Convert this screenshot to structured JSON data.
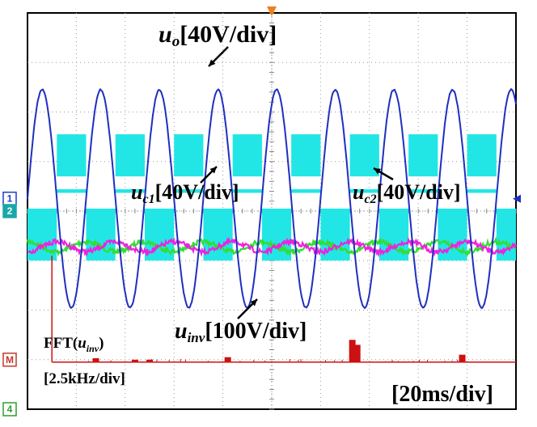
{
  "chart_data": {
    "type": "line",
    "title": "",
    "timebase": "[20ms/div]",
    "grid": true,
    "grid_divisions": {
      "x": 10,
      "y": 8
    },
    "channels": [
      {
        "marker": "1",
        "color": "#1f3fbf"
      },
      {
        "marker": "2",
        "color": "#1aa7a7"
      },
      {
        "marker": "M",
        "color": "#c0392b"
      },
      {
        "marker": "4",
        "color": "#2e9e2e"
      }
    ],
    "series": [
      {
        "name": "u_o",
        "label_main": "u",
        "label_sub": "o",
        "label_scale": "[40V/div]",
        "color": "#1f2fbf",
        "unit": "V",
        "scale_per_div": 40,
        "amplitude_div": 2.2,
        "offset_div": 0.25,
        "period_div": 1.2,
        "phase_peak_div": 1.5
      },
      {
        "name": "u_c1",
        "label_main": "u",
        "label_sub": "c1",
        "label_scale": "[40V/div]",
        "color": "#ee22dd",
        "unit": "V",
        "scale_per_div": 40,
        "amplitude_div": 0.1,
        "offset_div": -0.72,
        "period_div": 1.2,
        "phase_peak_div": 1.8
      },
      {
        "name": "u_c2",
        "label_main": "u",
        "label_sub": "c2",
        "label_scale": "[40V/div]",
        "color": "#33dd33",
        "unit": "V",
        "scale_per_div": 40,
        "amplitude_div": 0.1,
        "offset_div": -0.72,
        "period_div": 1.2,
        "phase_peak_div": 1.2
      },
      {
        "name": "u_inv",
        "label_main": "u",
        "label_sub": "inv",
        "label_scale": "[100V/div]",
        "color": "#22e6e6",
        "unit": "V",
        "scale_per_div": 100,
        "levels_div": [
          0.2,
          -0.45,
          -0.35
        ],
        "level_width_div": 0.12,
        "period_div": 1.2,
        "first_high_start_div": 0.6
      },
      {
        "name": "FFT(u_inv)",
        "label_main": "FFT(",
        "label_var": "u",
        "label_sub": "inv",
        "label_end": ")",
        "label_scale": "[2.5kHz/div]",
        "color": "#cc1111",
        "freq_per_div_khz": 2.5,
        "peaks": [
          {
            "x_div": 0.5,
            "height_div": 2.15
          },
          {
            "x_div": 1.4,
            "height_div": 0.08
          },
          {
            "x_div": 2.2,
            "height_div": 0.05
          },
          {
            "x_div": 2.5,
            "height_div": 0.05
          },
          {
            "x_div": 4.1,
            "height_div": 0.1
          },
          {
            "x_div": 6.65,
            "height_div": 0.45
          },
          {
            "x_div": 6.75,
            "height_div": 0.35
          },
          {
            "x_div": 8.9,
            "height_div": 0.15
          }
        ]
      }
    ]
  }
}
